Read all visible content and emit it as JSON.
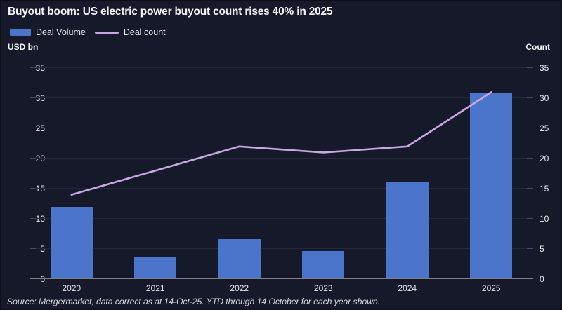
{
  "header": {
    "title": "Buyout boom: US electric power buyout count rises 40% in 2025"
  },
  "legend": [
    {
      "label": "Deal Volume",
      "type": "bar"
    },
    {
      "label": "Deal count",
      "type": "line"
    }
  ],
  "footer": {
    "source": "Source: Mergermarket, data correct as at 14-Oct-25. YTD through 14 October for each year shown."
  },
  "colors": {
    "background": "#161929",
    "bar": "#4a75ca",
    "line": "#c9a8e2",
    "grid": "#252836",
    "baseline": "#7e8089",
    "text": "#f4f5f7"
  },
  "chart_data": {
    "type": "bar",
    "subtype": "bar+line combo, dual axis (same scale both sides)",
    "title": "Buyout boom: US electric power buyout count rises 40% in 2025",
    "categories": [
      "2020",
      "2021",
      "2022",
      "2023",
      "2024",
      "2025"
    ],
    "series": [
      {
        "name": "Deal Volume",
        "type": "bar",
        "axis": "left",
        "color": "#4a75ca",
        "values": [
          12,
          3.7,
          6.6,
          4.7,
          16.1,
          30.8
        ]
      },
      {
        "name": "Deal count",
        "type": "line",
        "axis": "right",
        "color": "#c9a8e2",
        "values": [
          14,
          18,
          22,
          21,
          22,
          31
        ]
      }
    ],
    "left_axis_title": "USD bn",
    "right_axis_title": "Count",
    "ylim": [
      0,
      35
    ],
    "yticks": [
      0,
      5,
      10,
      15,
      20,
      25,
      30,
      35
    ],
    "grid": true,
    "legend_position": "top-left"
  }
}
